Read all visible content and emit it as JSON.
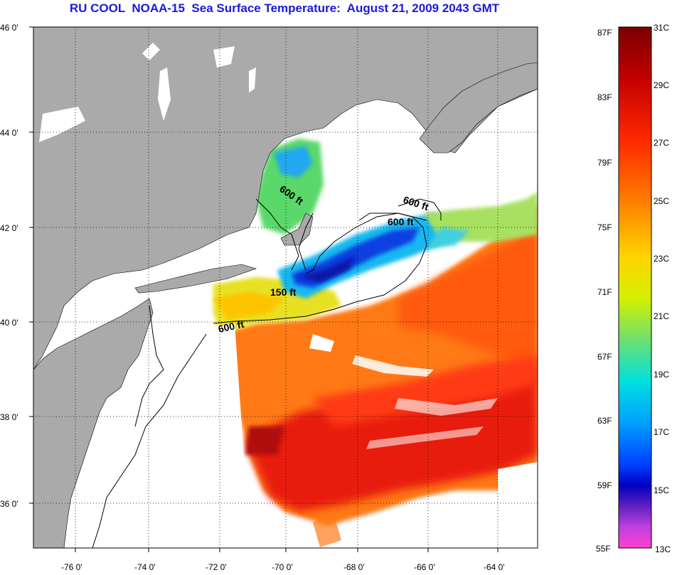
{
  "title": "RU COOL  NOAA-15  Sea Surface Temperature:  August 21, 2009 2043 GMT",
  "map": {
    "lon_ticks": [
      "-76 0'",
      "-74 0'",
      "-72 0'",
      "-70 0'",
      "-68 0'",
      "-66 0'",
      "-64 0'"
    ],
    "lat_ticks": [
      "46 0'",
      "44 0'",
      "42 0'",
      "40 0'",
      "38 0'",
      "36 0'"
    ],
    "contour_labels": [
      "600 ft",
      "600 ft",
      "600 ft",
      "150 ft",
      "600 ft"
    ],
    "colors": {
      "land": "#aaaaaa",
      "water_nodata": "#ffffff"
    }
  },
  "colorbar": {
    "fahrenheit": [
      "87F",
      "83F",
      "79F",
      "75F",
      "71F",
      "67F",
      "63F",
      "59F",
      "55F"
    ],
    "celsius": [
      "31C",
      "29C",
      "27C",
      "25C",
      "23C",
      "21C",
      "19C",
      "17C",
      "15C",
      "13C"
    ],
    "gradient_stops": [
      "#7a0000",
      "#c40000",
      "#ff2a00",
      "#ff7a00",
      "#ffd400",
      "#d4f000",
      "#6ee06e",
      "#00e0e0",
      "#00a0ff",
      "#0040ff",
      "#0000c0",
      "#6020c0",
      "#c040e0",
      "#ff40d0"
    ]
  }
}
